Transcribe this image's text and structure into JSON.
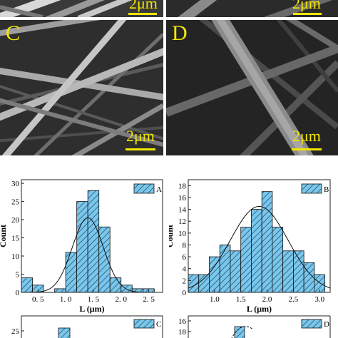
{
  "sem_panels": [
    {
      "id": "A",
      "letter": "",
      "scale": "2μm"
    },
    {
      "id": "B",
      "letter": "",
      "scale": "2μm"
    },
    {
      "id": "C",
      "letter": "C",
      "scale": "2μm"
    },
    {
      "id": "D",
      "letter": "D",
      "scale": "2μm"
    }
  ],
  "chart_data": [
    {
      "type": "bar",
      "legend": "A",
      "xlabel": "L (μm)",
      "ylabel": "Count",
      "xlim": [
        0.2,
        2.75
      ],
      "ylim": [
        0,
        31
      ],
      "xticks": [
        "0. 5",
        "1. 0",
        "1. 5",
        "2. 0",
        "2. 5"
      ],
      "xtick_values": [
        0.5,
        1.0,
        1.5,
        2.0,
        2.5
      ],
      "yticks": [
        0,
        5,
        10,
        15,
        20,
        25,
        30
      ],
      "bin_width": 0.2,
      "bin_centers": [
        0.3,
        0.5,
        0.7,
        0.9,
        1.1,
        1.3,
        1.5,
        1.7,
        1.9,
        2.1,
        2.3,
        2.5,
        2.7
      ],
      "values": [
        4,
        2,
        0,
        1,
        11,
        25,
        28,
        18,
        4,
        2,
        1,
        1,
        0
      ],
      "fit": {
        "type": "gaussian",
        "mean": 1.4,
        "sigma": 0.28,
        "peak": 20.5
      },
      "legend_position": "top-right"
    },
    {
      "type": "bar",
      "legend": "B",
      "xlabel": "L (μm)",
      "ylabel": "Count",
      "xlim": [
        0.5,
        3.2
      ],
      "ylim": [
        0,
        19
      ],
      "xticks": [
        "1.0",
        "1.5",
        "2.0",
        "2.5",
        "3.0"
      ],
      "xtick_values": [
        1.0,
        1.5,
        2.0,
        2.5,
        3.0
      ],
      "yticks": [
        0,
        2,
        4,
        6,
        8,
        10,
        12,
        14,
        16,
        18
      ],
      "bin_width": 0.2,
      "bin_centers": [
        0.6,
        0.8,
        1.0,
        1.2,
        1.4,
        1.6,
        1.8,
        2.0,
        2.2,
        2.4,
        2.6,
        2.8,
        3.0
      ],
      "values": [
        3,
        3,
        6,
        8,
        7,
        11,
        14,
        17,
        11,
        7,
        7,
        5,
        3
      ],
      "fit": {
        "type": "gaussian",
        "mean": 1.85,
        "sigma": 0.55,
        "peak": 14.5
      },
      "legend_position": "top-right"
    },
    {
      "type": "bar",
      "legend": "C",
      "yticks": [
        25
      ],
      "legend_position": "top-right"
    },
    {
      "type": "bar",
      "legend": "D",
      "yticks": [
        16,
        18
      ],
      "legend_position": "top-right"
    }
  ]
}
